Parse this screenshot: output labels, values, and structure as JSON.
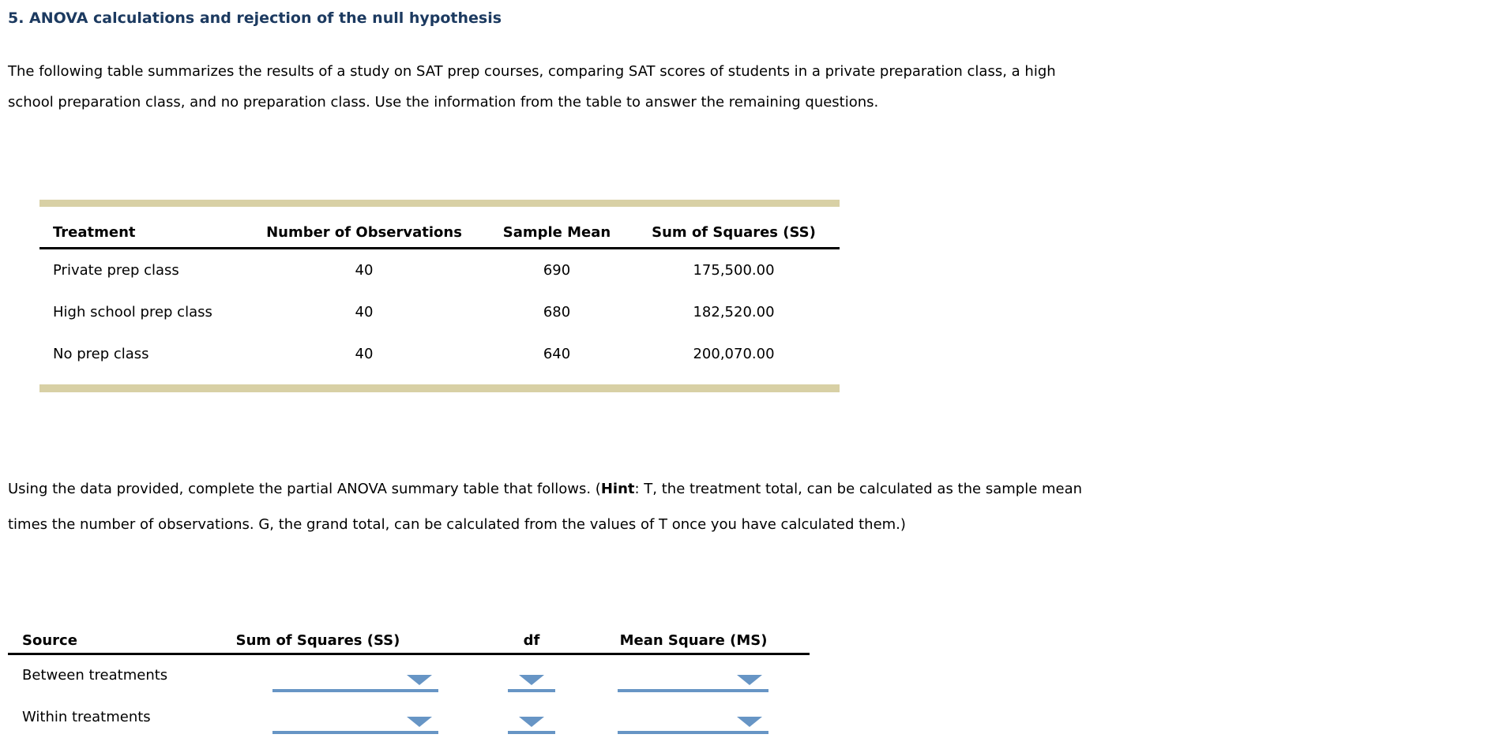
{
  "question": {
    "title": "5. ANOVA calculations and rejection of the null hypothesis",
    "intro": {
      "line1": "The following table summarizes the results of a study on SAT prep courses, comparing SAT scores of students in a private preparation class, a high",
      "line2": "school preparation class, and no preparation class. Use the information from the table to answer the remaining questions."
    },
    "instruction": {
      "line1_pre": "Using the data provided, complete the partial ANOVA summary table that follows. (",
      "hint_label": "Hint",
      "line1_post": ": T, the treatment total, can be calculated as the sample mean",
      "line2": "times the number of observations. G, the grand total, can be calculated from the values of T once you have calculated them.)"
    }
  },
  "data_table": {
    "headers": [
      "Treatment",
      "Number of Observations",
      "Sample Mean",
      "Sum of Squares (SS)"
    ],
    "rows": [
      {
        "treatment": "Private prep class",
        "n": "40",
        "mean": "690",
        "ss": "175,500.00"
      },
      {
        "treatment": "High school prep class",
        "n": "40",
        "mean": "680",
        "ss": "182,520.00"
      },
      {
        "treatment": "No prep class",
        "n": "40",
        "mean": "640",
        "ss": "200,070.00"
      }
    ]
  },
  "anova_table": {
    "headers": [
      "Source",
      "Sum of Squares (SS)",
      "df",
      "Mean Square (MS)"
    ],
    "rows": [
      {
        "source": "Between treatments",
        "ss": "",
        "df": "",
        "ms": ""
      },
      {
        "source": "Within treatments",
        "ss": "",
        "df": "",
        "ms": ""
      }
    ]
  },
  "colors": {
    "title_navy": "#1c3a60",
    "table_border_tan": "#d8d0a5",
    "dropdown_blue": "#6795c5",
    "body_text": "#000000"
  }
}
